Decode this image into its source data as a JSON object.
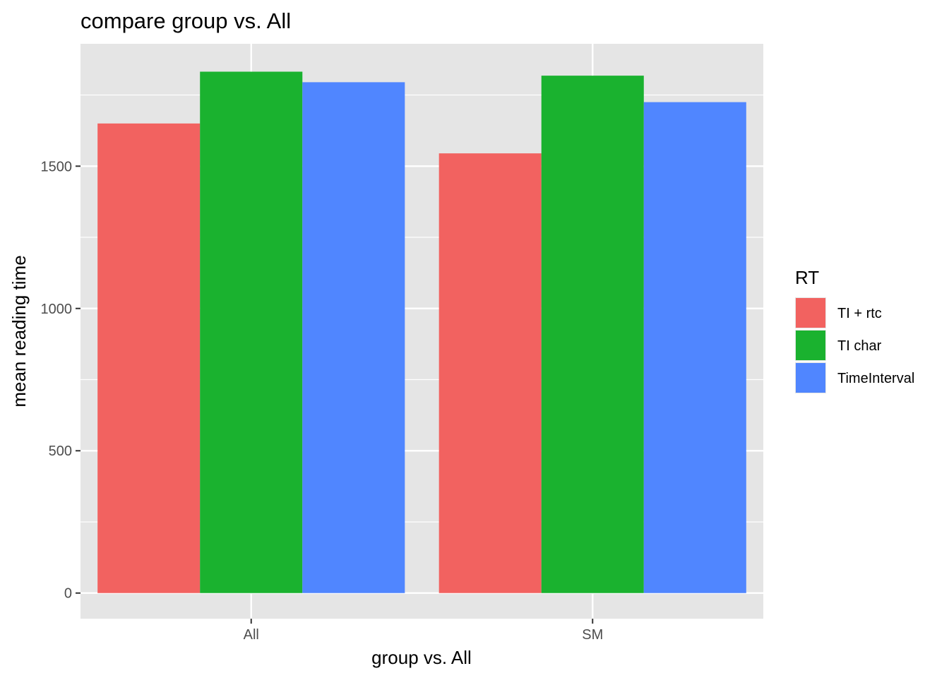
{
  "chart_data": {
    "type": "bar",
    "title": "compare group vs. All",
    "xlabel": "group vs. All",
    "ylabel": "mean reading time",
    "categories": [
      "All",
      "SM"
    ],
    "series": [
      {
        "name": "TI + rtc",
        "color": "#F26260",
        "values": [
          1650,
          1545
        ]
      },
      {
        "name": "TI char",
        "color": "#1AB22F",
        "values": [
          1832,
          1818
        ]
      },
      {
        "name": "TimeInterval",
        "color": "#5086FF",
        "values": [
          1795,
          1725
        ]
      }
    ],
    "ylim": [
      -90,
      1930
    ],
    "yticks": [
      0,
      500,
      1000,
      1500
    ],
    "ytick_labels": [
      "0",
      "500",
      "1000",
      "1500"
    ],
    "grid": true,
    "legend_title": "RT",
    "legend_position": "right",
    "panel_color": "#E5E5E5",
    "grid_color": "#FFFFFF"
  }
}
